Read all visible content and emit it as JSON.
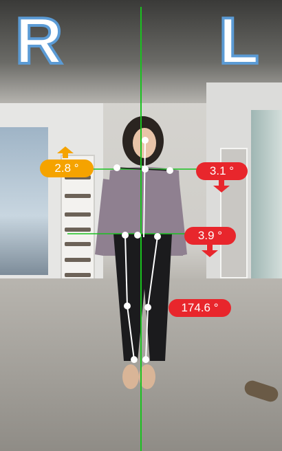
{
  "side_labels": {
    "right": "R",
    "left": "L"
  },
  "measurements": {
    "shoulder_right": "2.8 °",
    "shoulder_left": "3.1 °",
    "pelvis": "3.9 °",
    "knee": "174.6 °"
  },
  "colors": {
    "warning": "#f5a300",
    "alert": "#e8262c",
    "plumb_line": "#19c21f",
    "letter_stroke": "#5b9bd5"
  },
  "icons": {
    "shoulder_right_indicator": "arrow-up-icon",
    "shoulder_left_indicator": "arrow-down-icon",
    "pelvis_indicator": "arrow-down-icon"
  }
}
